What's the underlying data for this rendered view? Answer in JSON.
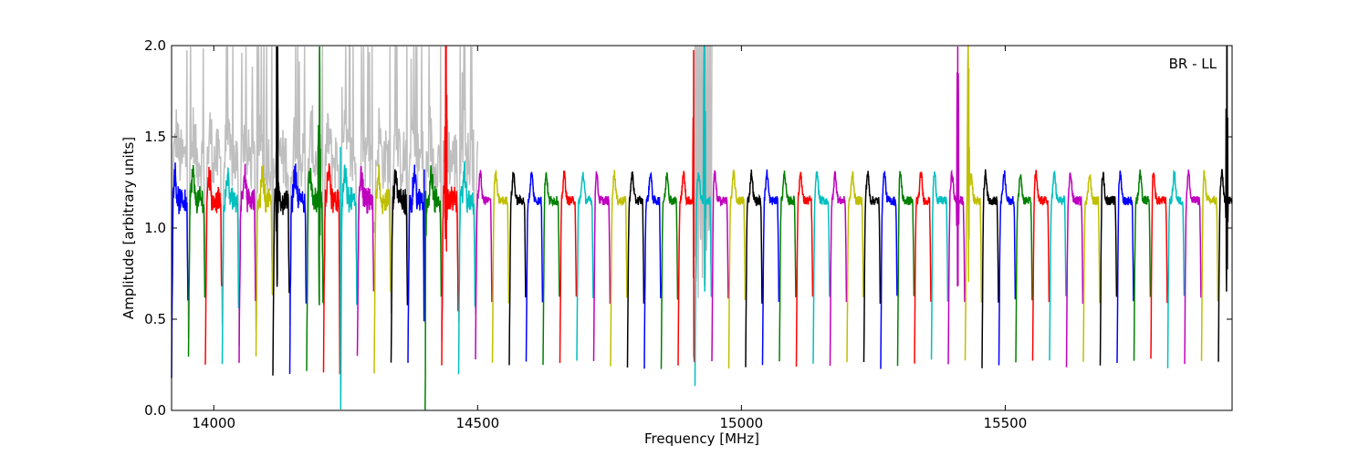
{
  "chart_data": {
    "type": "line",
    "title": "",
    "xlabel": "Frequency [MHz]",
    "ylabel": "Amplitude [arbitrary units]",
    "annotation": "BR - LL",
    "xlim": [
      13920,
      15930
    ],
    "ylim": [
      0.0,
      2.0
    ],
    "xticks": [
      14000,
      14500,
      15000,
      15500
    ],
    "xtick_labels": [
      "14000",
      "14500",
      "15000",
      "15500"
    ],
    "yticks": [
      0.0,
      0.5,
      1.0,
      1.5,
      2.0
    ],
    "ytick_labels": [
      "0.0",
      "0.5",
      "1.0",
      "1.5",
      "2.0"
    ],
    "grid": false,
    "legend": "none",
    "colors": [
      "#0000ff",
      "#008000",
      "#ff0000",
      "#00bfbf",
      "#bf00bf",
      "#bfbf00",
      "#000000"
    ],
    "background_trace_color": "#bfbfbf",
    "channel_width_mhz": 32,
    "channel_start_mhz": 13920,
    "channel_count": 63,
    "channel_shape": {
      "edge_value": 0.25,
      "plateau_value": 1.15,
      "peak_value": 1.3
    },
    "rfi_spikes_mhz": [
      14120,
      14200,
      14240,
      14400,
      14440,
      14910,
      14930,
      15410,
      15430,
      15920
    ]
  }
}
